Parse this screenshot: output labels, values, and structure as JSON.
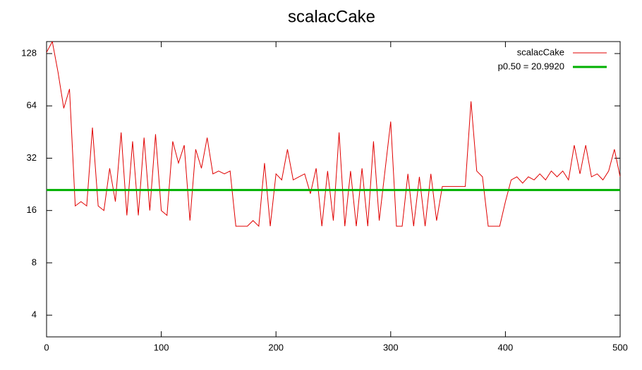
{
  "chart_data": {
    "type": "line",
    "title": "scalacCake",
    "x": [
      0,
      5,
      10,
      15,
      20,
      25,
      30,
      35,
      40,
      45,
      50,
      55,
      60,
      65,
      70,
      75,
      80,
      85,
      90,
      95,
      100,
      105,
      110,
      115,
      120,
      125,
      130,
      135,
      140,
      145,
      150,
      155,
      160,
      165,
      170,
      175,
      180,
      185,
      190,
      195,
      200,
      205,
      210,
      215,
      220,
      225,
      230,
      235,
      240,
      245,
      250,
      255,
      260,
      265,
      270,
      275,
      280,
      285,
      290,
      295,
      300,
      305,
      310,
      315,
      320,
      325,
      330,
      335,
      340,
      345,
      350,
      355,
      360,
      365,
      370,
      375,
      380,
      385,
      390,
      395,
      400,
      405,
      410,
      415,
      420,
      425,
      430,
      435,
      440,
      445,
      450,
      455,
      460,
      465,
      470,
      475,
      480,
      485,
      490,
      495,
      500
    ],
    "series": [
      {
        "name": "scalacCake",
        "color": "#e00000",
        "values": [
          130,
          150,
          100,
          62,
          80,
          17,
          18,
          17,
          48,
          17,
          16,
          28,
          18,
          45,
          15,
          40,
          15,
          42,
          16,
          44,
          16,
          15,
          40,
          30,
          38,
          14,
          36,
          28,
          42,
          26,
          27,
          26,
          27,
          13,
          13,
          13,
          14,
          13,
          30,
          13,
          26,
          24,
          36,
          24,
          25,
          26,
          20,
          28,
          13,
          27,
          14,
          45,
          13,
          27,
          13,
          28,
          13,
          40,
          14,
          27,
          52,
          13,
          13,
          26,
          13,
          25,
          13,
          26,
          14,
          22,
          22,
          22,
          22,
          22,
          68,
          27,
          25,
          13,
          13,
          13,
          18,
          24,
          25,
          23,
          25,
          24,
          26,
          24,
          27,
          25,
          27,
          24,
          38,
          26,
          38,
          25,
          26,
          24,
          27,
          36,
          25
        ]
      }
    ],
    "median": {
      "name": "p0.50 = 20.9920",
      "value": 20.992,
      "color": "#00b000"
    },
    "xlim": [
      0,
      500
    ],
    "xticks": [
      0,
      100,
      200,
      300,
      400,
      500
    ],
    "ylim": [
      3,
      150
    ],
    "yticks": [
      4,
      8,
      16,
      32,
      64,
      128
    ],
    "log_y": true,
    "grid": false,
    "legend": "top-right"
  }
}
